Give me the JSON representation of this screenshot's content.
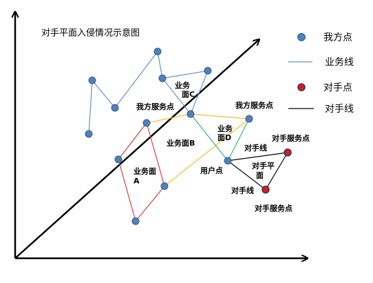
{
  "title": "对手平面入侵情况示意图",
  "legend": {
    "our_point": "我方点",
    "service_line": "业务线",
    "rival_point": "对手点",
    "rival_line": "对手线"
  },
  "labels": {
    "plane_c_line1": "业务",
    "plane_c_line2": "面C",
    "our_service_point_left": "我方服务点",
    "our_service_point_right": "我方服务点",
    "plane_b": "业务面B",
    "plane_d_line1": "业务",
    "plane_d_line2": "面D",
    "plane_a_line1": "业务面",
    "plane_a_line2": "A",
    "user_point": "用户点",
    "rival_line_upper": "对手线",
    "rival_line_lower": "对手线",
    "rival_plane_line1": "对手平",
    "rival_plane_line2": "面",
    "rival_service_point_upper": "对手服务点",
    "rival_service_point_lower": "对手服务点"
  },
  "colors": {
    "our_point_fill": "#4F81BD",
    "our_point_stroke": "#385D8A",
    "rival_point_fill": "#E8141D",
    "service_line_blue": "#6A8FC7",
    "plane_a_red": "#E03B3B",
    "plane_b_yellow": "#F2C12E",
    "plane_d_green": "#3DB36B",
    "rival_line": "#000000"
  }
}
